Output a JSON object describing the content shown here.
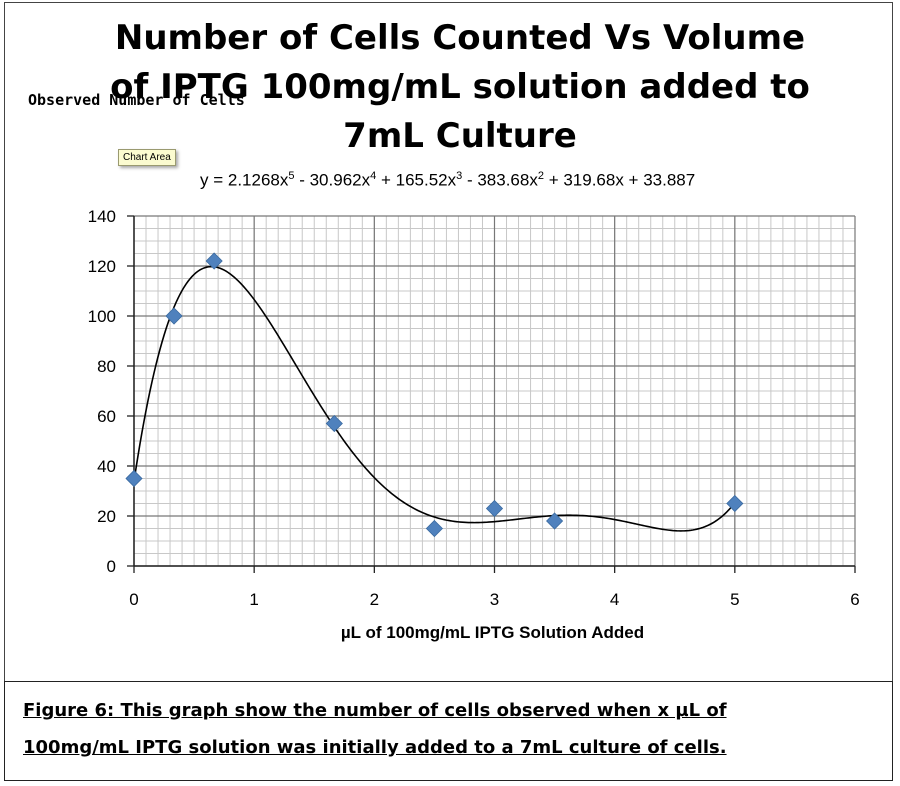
{
  "chart_data": {
    "type": "scatter",
    "title": "Number of Cells Counted  Vs Volume\nof IPTG 100mg/mL solution added to\n7mL Culture",
    "xlabel": "µL of 100mg/mL IPTG Solution Added",
    "ylabel": "Observed Number of Cells",
    "xlim": [
      0,
      6
    ],
    "ylim": [
      0,
      140
    ],
    "xticks": [
      "0",
      "1",
      "2",
      "3",
      "4",
      "5",
      "6"
    ],
    "yticks": [
      "0",
      "20",
      "40",
      "60",
      "80",
      "100",
      "120",
      "140"
    ],
    "grid": true,
    "marker": "diamond",
    "marker_color": "#4f81bd",
    "points": [
      {
        "x": 0,
        "y": 35
      },
      {
        "x": 0.333,
        "y": 100
      },
      {
        "x": 0.667,
        "y": 122
      },
      {
        "x": 1.667,
        "y": 57
      },
      {
        "x": 2.5,
        "y": 15
      },
      {
        "x": 3,
        "y": 23
      },
      {
        "x": 3.5,
        "y": 18
      },
      {
        "x": 5,
        "y": 25
      }
    ],
    "trendline": {
      "type": "polynomial",
      "order": 5,
      "coefficients": [
        2.1268,
        -30.962,
        165.52,
        -383.68,
        319.68,
        33.887
      ],
      "equation_parts": [
        {
          "t": "y = 2.1268x"
        },
        {
          "sup": "5"
        },
        {
          "t": " - 30.962x"
        },
        {
          "sup": "4"
        },
        {
          "t": " + 165.52x"
        },
        {
          "sup": "3"
        },
        {
          "t": " - 383.68x"
        },
        {
          "sup": "2"
        },
        {
          "t": " + 319.68x + 33.887"
        }
      ]
    }
  },
  "tooltip": "Chart Area",
  "caption": "Figure 6:  This graph show the number of cells observed when x µL of\n100mg/mL IPTG solution was initially added to a 7mL culture of cells."
}
